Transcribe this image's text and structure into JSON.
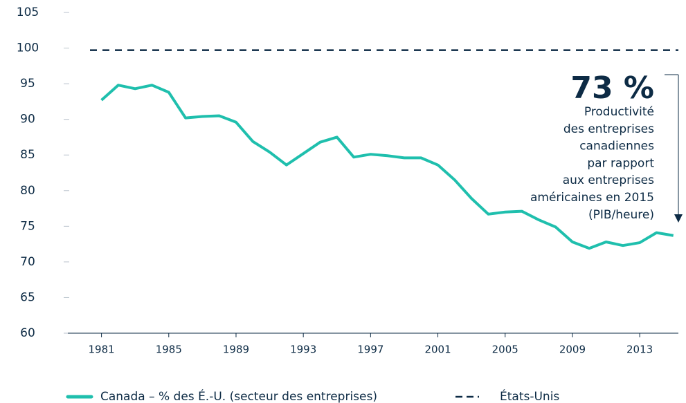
{
  "chart_data": {
    "type": "line",
    "x": [
      1981,
      1982,
      1983,
      1984,
      1985,
      1986,
      1987,
      1988,
      1989,
      1990,
      1991,
      1992,
      1993,
      1994,
      1995,
      1996,
      1997,
      1998,
      1999,
      2000,
      2001,
      2002,
      2003,
      2004,
      2005,
      2006,
      2007,
      2008,
      2009,
      2010,
      2011,
      2012,
      2013,
      2014,
      2015
    ],
    "series": [
      {
        "name": "Canada – % des É.-U. (secteur des entreprises)",
        "color": "#1fbfad",
        "values": [
          92.7,
          94.8,
          94.3,
          94.8,
          93.8,
          90.2,
          90.4,
          90.5,
          89.6,
          86.9,
          85.4,
          83.6,
          85.2,
          86.8,
          87.5,
          84.7,
          85.1,
          84.9,
          84.6,
          84.6,
          83.6,
          81.5,
          78.9,
          76.7,
          77.0,
          77.1,
          75.9,
          74.9,
          72.8,
          71.9,
          72.8,
          72.3,
          72.7,
          74.1,
          73.7
        ]
      }
    ],
    "reference_line": {
      "name": "États-Unis",
      "value": 99.7,
      "color": "#0d2b45"
    },
    "xlim": [
      1979,
      2015.3
    ],
    "xticks": [
      1981,
      1985,
      1989,
      1993,
      1997,
      2001,
      2005,
      2009,
      2013
    ],
    "ylim": [
      60,
      105
    ],
    "yticks": [
      60,
      65,
      70,
      75,
      80,
      85,
      90,
      95,
      100,
      105
    ],
    "annotation": {
      "headline": "73 %",
      "lines": [
        "Productivité",
        "des entreprises",
        "canadiennes",
        "par rapport",
        "aux entreprises",
        "américaines en 2015",
        "(PIB/heure)"
      ]
    }
  }
}
